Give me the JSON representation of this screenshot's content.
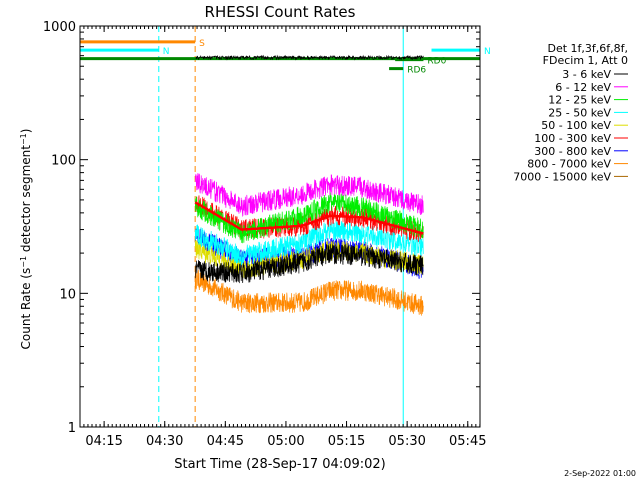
{
  "chart_data": {
    "type": "line",
    "title": "RHESSI Count Rates",
    "xlabel": "Start Time (28-Sep-17 04:09:02)",
    "ylabel_parts": [
      "Count Rate (s",
      "−1",
      " detector segment",
      "−1",
      ")"
    ],
    "yscale": "log",
    "ylim": [
      1,
      1000
    ],
    "xlim_minutes": [
      0,
      99
    ],
    "x_ticks": [
      {
        "label": "04:15",
        "m": 5.97
      },
      {
        "label": "04:30",
        "m": 20.97
      },
      {
        "label": "04:45",
        "m": 35.97
      },
      {
        "label": "05:00",
        "m": 50.97
      },
      {
        "label": "05:15",
        "m": 65.97
      },
      {
        "label": "05:30",
        "m": 80.97
      },
      {
        "label": "05:45",
        "m": 95.97
      }
    ],
    "y_ticks": [
      {
        "label": "1",
        "v": 1
      },
      {
        "label": "10",
        "v": 10
      },
      {
        "label": "100",
        "v": 100
      },
      {
        "label": "1000",
        "v": 1000
      }
    ],
    "legend_header": [
      "Det 1f,3f,6f,8f,",
      "FDecim 1, Att 0"
    ],
    "legend_position": "right",
    "series": [
      {
        "name": "3 - 6 keV",
        "color": "#000000",
        "x": [
          28.5,
          40,
          55,
          62,
          70,
          85
        ],
        "y": [
          15,
          14,
          17,
          20,
          19,
          16
        ]
      },
      {
        "name": "6 - 12 keV",
        "color": "#ff00ff",
        "x": [
          28.5,
          40,
          55,
          62,
          70,
          85
        ],
        "y": [
          70,
          45,
          55,
          65,
          62,
          45
        ]
      },
      {
        "name": "12 - 25 keV",
        "color": "#00ee00",
        "x": [
          28.5,
          40,
          55,
          62,
          70,
          85
        ],
        "y": [
          45,
          28,
          38,
          48,
          44,
          30
        ]
      },
      {
        "name": "25 - 50 keV",
        "color": "#00ffff",
        "x": [
          28.5,
          40,
          55,
          62,
          70,
          85
        ],
        "y": [
          28,
          19,
          24,
          30,
          28,
          22
        ]
      },
      {
        "name": "50 - 100 keV",
        "color": "#dddd00",
        "x": [
          28.5,
          40,
          55,
          62,
          70,
          85
        ],
        "y": [
          22,
          15,
          18,
          21,
          20,
          16
        ]
      },
      {
        "name": "100 - 300 keV",
        "color": "#ff0000",
        "x": [
          28.5,
          40,
          55,
          62,
          70,
          85
        ],
        "y": [
          48,
          30,
          32,
          38,
          37,
          28
        ]
      },
      {
        "name": "300 - 800 keV",
        "color": "#0000ff",
        "x": [
          28.5,
          40,
          55,
          62,
          70,
          85
        ],
        "y": [
          27,
          18,
          19,
          22,
          21,
          15
        ]
      },
      {
        "name": "800 - 7000 keV",
        "color": "#ff8800",
        "x": [
          28.5,
          40,
          55,
          62,
          70,
          85
        ],
        "y": [
          13,
          8.5,
          8.5,
          10.5,
          10.5,
          8
        ]
      },
      {
        "name": "7000 - 15000 keV",
        "color": "#aa6600",
        "x": [],
        "y": []
      }
    ],
    "flag_bars": [
      {
        "label": "S",
        "color": "#ff8800",
        "x": [
          0,
          28.5
        ],
        "y": 760
      },
      {
        "label": "N",
        "color": "#00ffff",
        "x": [
          0,
          19.5
        ],
        "y": 660
      },
      {
        "label": "N",
        "color": "#00ffff",
        "x": [
          87,
          99
        ],
        "y": 660
      },
      {
        "label": "",
        "color": "#008800",
        "x": [
          0,
          99
        ],
        "y": 570
      },
      {
        "label": "RD0",
        "color": "#008800",
        "x": [
          78,
          85
        ],
        "y": 560
      },
      {
        "label": "RD6",
        "color": "#008800",
        "x": [
          76.5,
          80
        ],
        "y": 480
      }
    ],
    "vertical_markers": [
      {
        "color": "#00ffff",
        "style": "solid",
        "x": 0
      },
      {
        "color": "#00ffff",
        "style": "dashed",
        "x": 19.5
      },
      {
        "color": "#ff8800",
        "style": "dashed",
        "x": 28.5
      },
      {
        "color": "#00ffff",
        "style": "solid",
        "x": 80
      },
      {
        "color": "#00ffff",
        "style": "dashed",
        "x": 99
      }
    ],
    "timestamp": "2-Sep-2022 01:00"
  }
}
